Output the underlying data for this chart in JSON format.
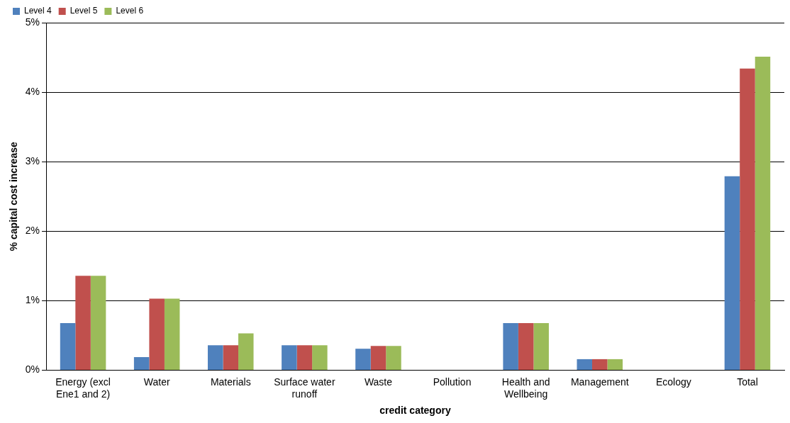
{
  "chart_data": {
    "type": "bar",
    "xlabel": "credit category",
    "ylabel": "% capital cost increase",
    "categories": [
      [
        "Energy (excl",
        "Ene1 and 2)"
      ],
      "Water",
      "Materials",
      [
        "Surface water",
        "runoff"
      ],
      "Waste",
      "Pollution",
      [
        "Health and",
        "Wellbeing"
      ],
      "Management",
      "Ecology",
      "Total"
    ],
    "series": [
      {
        "name": "Level 4",
        "color": "#4f81bd",
        "values": [
          0.68,
          0.19,
          0.36,
          0.36,
          0.31,
          0,
          0.68,
          0.16,
          0,
          2.79
        ]
      },
      {
        "name": "Level 5",
        "color": "#c0504d",
        "values": [
          1.36,
          1.03,
          0.36,
          0.36,
          0.35,
          0,
          0.68,
          0.16,
          0,
          4.34
        ]
      },
      {
        "name": "Level 6",
        "color": "#9bbb59",
        "values": [
          1.36,
          1.03,
          0.53,
          0.36,
          0.35,
          0,
          0.68,
          0.16,
          0,
          4.51
        ]
      }
    ],
    "ylim": [
      0,
      5
    ],
    "yticks": [
      {
        "value": 0,
        "label": "0%"
      },
      {
        "value": 1,
        "label": "1%"
      },
      {
        "value": 2,
        "label": "2%"
      },
      {
        "value": 3,
        "label": "3%"
      },
      {
        "value": 4,
        "label": "4%"
      },
      {
        "value": 5,
        "label": "5%"
      }
    ],
    "grid": "y",
    "legend": "top left"
  }
}
